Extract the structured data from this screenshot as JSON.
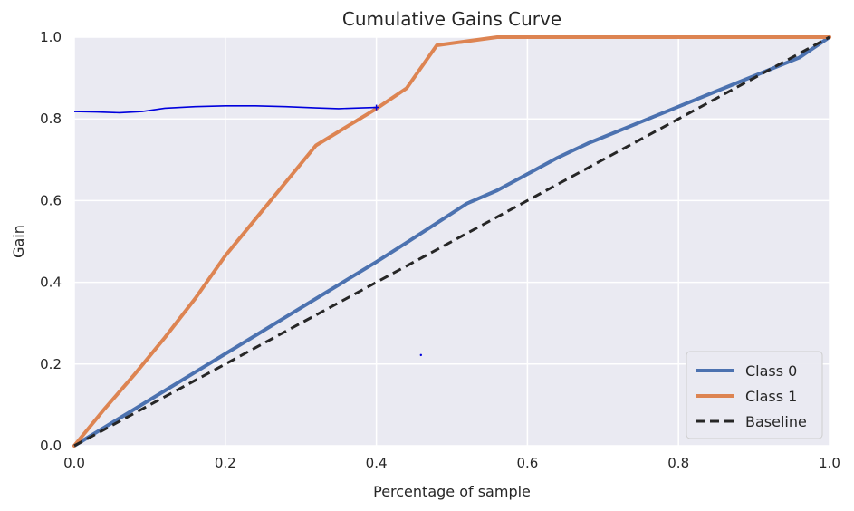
{
  "chart_data": {
    "type": "line",
    "title": "Cumulative Gains Curve",
    "xlabel": "Percentage of sample",
    "ylabel": "Gain",
    "xlim": [
      0.0,
      1.0
    ],
    "ylim": [
      0.0,
      1.0
    ],
    "grid": true,
    "x_ticks": [
      "0.0",
      "0.2",
      "0.4",
      "0.6",
      "0.8",
      "1.0"
    ],
    "y_ticks": [
      "0.0",
      "0.2",
      "0.4",
      "0.6",
      "0.8",
      "1.0"
    ],
    "legend_position": "lower-right",
    "series": [
      {
        "name": "Class 0",
        "color": "#4c72b0",
        "style": "solid",
        "x": [
          0.0,
          0.04,
          0.08,
          0.12,
          0.16,
          0.2,
          0.24,
          0.28,
          0.32,
          0.36,
          0.4,
          0.44,
          0.48,
          0.52,
          0.56,
          0.6,
          0.64,
          0.68,
          0.72,
          0.76,
          0.8,
          0.84,
          0.88,
          0.92,
          0.96,
          1.0
        ],
        "y": [
          0.0,
          0.045,
          0.09,
          0.135,
          0.18,
          0.225,
          0.27,
          0.315,
          0.36,
          0.405,
          0.45,
          0.497,
          0.545,
          0.593,
          0.625,
          0.665,
          0.705,
          0.74,
          0.77,
          0.8,
          0.83,
          0.86,
          0.89,
          0.92,
          0.95,
          1.0
        ]
      },
      {
        "name": "Class 1",
        "color": "#dd8452",
        "style": "solid",
        "x": [
          0.0,
          0.04,
          0.08,
          0.12,
          0.16,
          0.2,
          0.24,
          0.28,
          0.32,
          0.36,
          0.4,
          0.44,
          0.48,
          0.52,
          0.56,
          0.6,
          0.7,
          0.8,
          0.9,
          1.0
        ],
        "y": [
          0.0,
          0.09,
          0.175,
          0.265,
          0.36,
          0.465,
          0.555,
          0.645,
          0.735,
          0.78,
          0.825,
          0.875,
          0.98,
          0.99,
          1.0,
          1.0,
          1.0,
          1.0,
          1.0,
          1.0
        ]
      },
      {
        "name": "Baseline",
        "color": "#262626",
        "style": "dashed",
        "x": [
          0.0,
          1.0
        ],
        "y": [
          0.0,
          1.0
        ]
      }
    ],
    "annotations": [
      {
        "type": "hand-drawn-line",
        "color": "#0000dd",
        "x": [
          0.0,
          0.03,
          0.06,
          0.09,
          0.12,
          0.16,
          0.2,
          0.24,
          0.28,
          0.32,
          0.35,
          0.38,
          0.4
        ],
        "y": [
          0.818,
          0.817,
          0.815,
          0.818,
          0.826,
          0.83,
          0.832,
          0.832,
          0.83,
          0.827,
          0.825,
          0.827,
          0.828
        ]
      },
      {
        "type": "dot",
        "color": "#0000dd",
        "x": 0.459,
        "y": 0.222
      }
    ]
  }
}
